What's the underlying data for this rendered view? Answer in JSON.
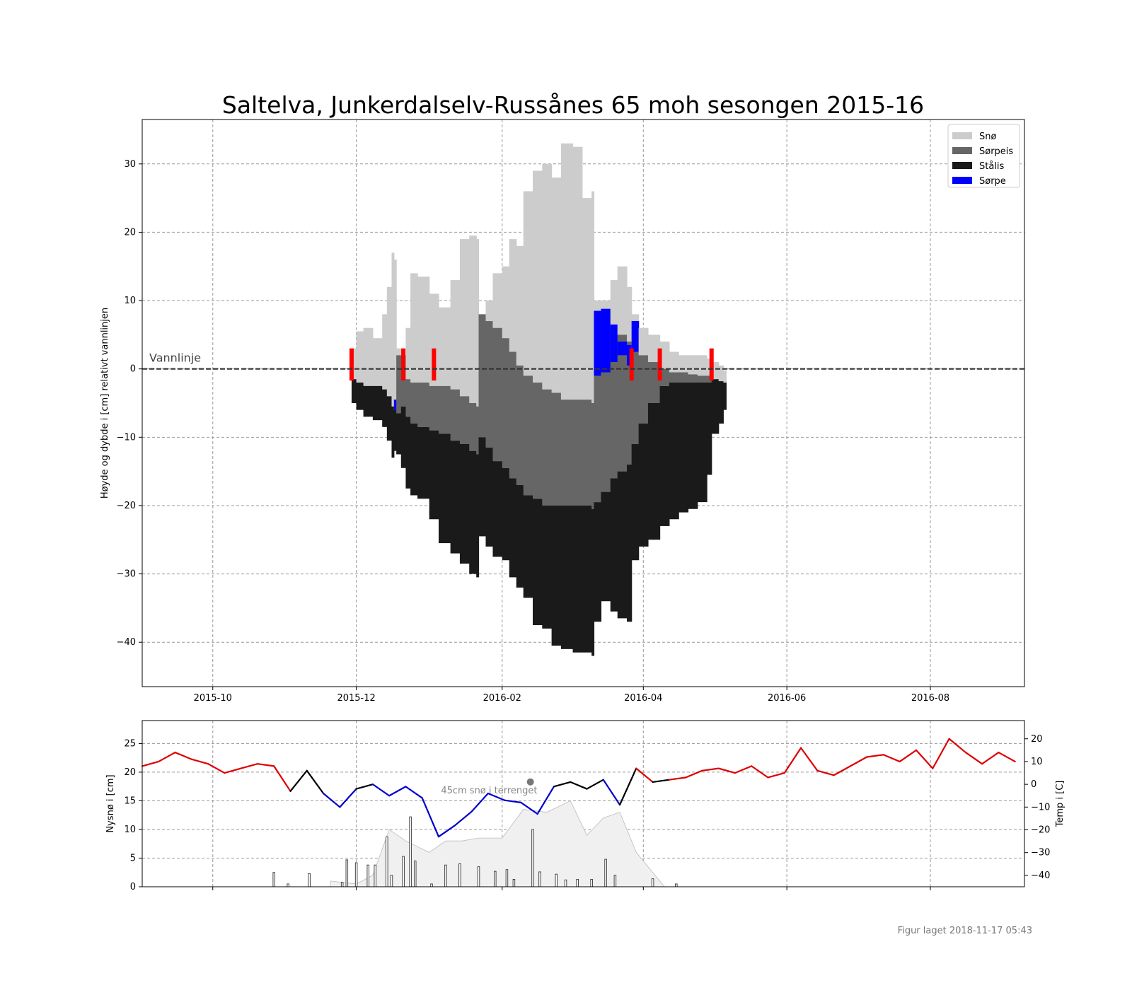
{
  "chart_data": [
    {
      "type": "bar",
      "title": "Saltelva, Junkerdalselv-Russånes 65 moh sesongen 2015-16",
      "ylabel": "Høyde og dybde i [cm] relativt vannlinjen",
      "xlim": [
        "2015-09-01",
        "2016-09-10"
      ],
      "ylim": [
        -46.5,
        36.5
      ],
      "grid": true,
      "x_ticks": [
        "2015-10",
        "2015-12",
        "2016-02",
        "2016-04",
        "2016-06",
        "2016-08"
      ],
      "y_ticks": [
        30,
        20,
        10,
        0,
        -10,
        -20,
        -30,
        -40
      ],
      "legend_position": "top-right",
      "waterline_label": "Vannlinje",
      "waterline_value": 0,
      "series": [
        {
          "name": "Snø",
          "color": "#cccccc"
        },
        {
          "name": "Sørpeis",
          "color": "#666666"
        },
        {
          "name": "Stålis",
          "color": "#1a1a1a"
        },
        {
          "name": "Sørpe",
          "color": "#0000ff"
        }
      ],
      "observation_markers": [
        "2015-11-29",
        "2015-12-21",
        "2016-01-03",
        "2016-03-27",
        "2016-04-08",
        "2016-04-30"
      ],
      "layers": {
        "x": [
          "2015-11-29",
          "2015-12-01",
          "2015-12-04",
          "2015-12-08",
          "2015-12-12",
          "2015-12-14",
          "2015-12-16",
          "2015-12-17",
          "2015-12-18",
          "2015-12-20",
          "2015-12-22",
          "2015-12-24",
          "2015-12-27",
          "2016-01-01",
          "2016-01-05",
          "2016-01-10",
          "2016-01-14",
          "2016-01-18",
          "2016-01-21",
          "2016-01-22",
          "2016-01-25",
          "2016-01-28",
          "2016-02-01",
          "2016-02-04",
          "2016-02-07",
          "2016-02-10",
          "2016-02-14",
          "2016-02-18",
          "2016-02-22",
          "2016-02-26",
          "2016-03-02",
          "2016-03-06",
          "2016-03-10",
          "2016-03-11",
          "2016-03-14",
          "2016-03-18",
          "2016-03-21",
          "2016-03-25",
          "2016-03-27",
          "2016-03-30",
          "2016-04-03",
          "2016-04-08",
          "2016-04-12",
          "2016-04-16",
          "2016-04-20",
          "2016-04-24",
          "2016-04-28",
          "2016-04-30",
          "2016-05-03",
          "2016-05-05"
        ],
        "top": [
          3.0,
          5.5,
          6.0,
          4.5,
          8.0,
          12.0,
          17.0,
          16.0,
          3.0,
          2.0,
          6.0,
          14.0,
          13.5,
          11.0,
          9.0,
          13.0,
          19.0,
          19.5,
          19.0,
          8.0,
          10.0,
          14.0,
          15.0,
          19.0,
          18.0,
          26.0,
          29.0,
          30.0,
          28.0,
          33.0,
          32.5,
          25.0,
          26.0,
          10.0,
          10.0,
          13.0,
          15.0,
          12.0,
          8.0,
          6.0,
          5.0,
          4.0,
          2.5,
          2.0,
          2.0,
          2.0,
          1.5,
          1.0,
          0.5,
          -0.2
        ],
        "snow_base": [
          -1.5,
          -2.0,
          -2.5,
          -2.5,
          -3.0,
          -4.0,
          -5.5,
          -6.0,
          2.0,
          2.0,
          -1.5,
          -2.0,
          -2.0,
          -2.5,
          -2.5,
          -3.0,
          -4.0,
          -5.0,
          -5.5,
          8.0,
          7.0,
          6.0,
          4.5,
          2.5,
          0.5,
          -1.0,
          -2.0,
          -3.0,
          -3.5,
          -4.5,
          -4.5,
          -4.5,
          -5.0,
          8.5,
          8.5,
          6.0,
          5.0,
          4.0,
          3.0,
          2.0,
          1.0,
          0.0,
          -0.5,
          -0.5,
          -0.8,
          -1.0,
          -1.0,
          -1.5,
          -1.8,
          -2.0
        ],
        "slush_ice_bottom": [
          -1.5,
          -2.0,
          -2.5,
          -2.5,
          -3.0,
          -4.0,
          -5.5,
          -6.0,
          -6.5,
          -5.5,
          -7.0,
          -8.0,
          -8.5,
          -9.0,
          -9.5,
          -10.5,
          -11.0,
          -12.0,
          -12.5,
          -10.0,
          -11.5,
          -13.5,
          -14.5,
          -16.0,
          -17.0,
          -18.5,
          -19.0,
          -20.0,
          -20.0,
          -20.0,
          -20.0,
          -20.0,
          -20.5,
          -19.5,
          -18.0,
          -16.0,
          -15.0,
          -14.0,
          -11.0,
          -8.0,
          -5.0,
          -2.5,
          -2.0,
          -2.0,
          -2.0,
          -2.0,
          -2.0,
          -1.5,
          -1.8,
          -2.0
        ],
        "steel_ice_bottom": [
          -5.0,
          -6.0,
          -7.0,
          -7.5,
          -8.5,
          -10.5,
          -13.0,
          -12.0,
          -12.5,
          -14.5,
          -17.5,
          -18.5,
          -19.0,
          -22.0,
          -25.5,
          -27.0,
          -28.5,
          -30.0,
          -30.5,
          -24.5,
          -26.0,
          -27.5,
          -28.0,
          -30.5,
          -32.0,
          -33.5,
          -37.5,
          -38.0,
          -40.5,
          -41.0,
          -41.5,
          -41.5,
          -42.0,
          -37.0,
          -34.0,
          -35.5,
          -36.5,
          -37.0,
          -28.0,
          -26.0,
          -25.0,
          -23.0,
          -22.0,
          -21.0,
          -20.5,
          -19.5,
          -15.5,
          -9.5,
          -8.0,
          -6.0
        ],
        "slurry_top": [
          0,
          0,
          0,
          0,
          0,
          0,
          0,
          -4.5,
          0,
          0,
          0,
          0,
          0,
          0,
          0,
          0,
          0,
          0,
          0,
          0,
          0,
          0,
          0,
          0,
          0,
          0,
          0,
          0,
          0,
          0,
          0,
          0,
          0,
          8.5,
          8.8,
          6.5,
          4.0,
          3.5,
          7.0,
          0,
          0,
          0,
          0,
          0,
          0,
          0,
          0,
          0,
          0,
          0
        ],
        "slurry_bottom": [
          0,
          0,
          0,
          0,
          0,
          0,
          0,
          -6.0,
          0,
          0,
          0,
          0,
          0,
          0,
          0,
          0,
          0,
          0,
          0,
          0,
          0,
          0,
          0,
          0,
          0,
          0,
          0,
          0,
          0,
          0,
          0,
          0,
          0,
          -1.0,
          -0.5,
          1.0,
          2.0,
          0.5,
          2.5,
          0,
          0,
          0,
          0,
          0,
          0,
          0,
          0,
          0,
          0,
          0
        ]
      }
    },
    {
      "type": "line",
      "ylabel": "Nysnø i [cm]",
      "y2label": "Temp i [C]",
      "ylim": [
        0,
        29
      ],
      "y2lim": [
        -45,
        28
      ],
      "y_ticks": [
        0,
        5,
        10,
        15,
        20,
        25
      ],
      "y2_ticks": [
        20,
        10,
        0,
        -10,
        -20,
        -30,
        -40
      ],
      "annotation": "45cm snø i terrenget",
      "annotation_x": "2016-02-13",
      "annotation_value": 45,
      "temperature": {
        "x": [
          "2015-09-01",
          "2015-09-08",
          "2015-09-15",
          "2015-09-22",
          "2015-09-29",
          "2015-10-06",
          "2015-10-13",
          "2015-10-20",
          "2015-10-27",
          "2015-11-03",
          "2015-11-10",
          "2015-11-17",
          "2015-11-24",
          "2015-12-01",
          "2015-12-08",
          "2015-12-15",
          "2015-12-22",
          "2015-12-29",
          "2016-01-05",
          "2016-01-12",
          "2016-01-19",
          "2016-01-26",
          "2016-02-02",
          "2016-02-09",
          "2016-02-16",
          "2016-02-23",
          "2016-03-01",
          "2016-03-08",
          "2016-03-15",
          "2016-03-22",
          "2016-03-29",
          "2016-04-05",
          "2016-04-12",
          "2016-04-19",
          "2016-04-26",
          "2016-05-03",
          "2016-05-10",
          "2016-05-17",
          "2016-05-24",
          "2016-05-31",
          "2016-06-07",
          "2016-06-14",
          "2016-06-21",
          "2016-06-28",
          "2016-07-05",
          "2016-07-12",
          "2016-07-19",
          "2016-07-26",
          "2016-08-02",
          "2016-08-09",
          "2016-08-16",
          "2016-08-23",
          "2016-08-30",
          "2016-09-06"
        ],
        "values": [
          8,
          10,
          14,
          11,
          9,
          5,
          7,
          9,
          8,
          -3,
          6,
          -4,
          -10,
          -2,
          0,
          -5,
          -1,
          -6,
          -23,
          -18,
          -12,
          -4,
          -7,
          -8,
          -13,
          -1,
          1,
          -2,
          2,
          -9,
          7,
          1,
          2,
          3,
          6,
          7,
          5,
          8,
          3,
          5,
          16,
          6,
          4,
          8,
          12,
          13,
          10,
          15,
          7,
          20,
          14,
          9,
          14,
          10
        ]
      },
      "temp_colors": {
        "warm": "#dd0000",
        "near_zero": "#000000",
        "cold": "#0000cc"
      },
      "snow_depth": {
        "x": [
          "2015-11-20",
          "2015-12-01",
          "2015-12-08",
          "2015-12-15",
          "2015-12-22",
          "2016-01-01",
          "2016-01-08",
          "2016-01-15",
          "2016-01-22",
          "2016-02-01",
          "2016-02-10",
          "2016-02-20",
          "2016-03-01",
          "2016-03-08",
          "2016-03-15",
          "2016-03-22",
          "2016-03-29",
          "2016-04-05",
          "2016-04-10"
        ],
        "values": [
          1.0,
          0.5,
          2.0,
          10.0,
          8.0,
          6.0,
          8.0,
          8.0,
          8.5,
          8.5,
          13.5,
          13.0,
          15.0,
          9.0,
          12.0,
          13.0,
          6.0,
          2.5,
          0
        ]
      },
      "new_snow": {
        "x": [
          "2015-10-27",
          "2015-11-02",
          "2015-11-11",
          "2015-11-25",
          "2015-11-27",
          "2015-12-01",
          "2015-12-06",
          "2015-12-09",
          "2015-12-14",
          "2015-12-16",
          "2015-12-21",
          "2015-12-24",
          "2015-12-26",
          "2016-01-02",
          "2016-01-08",
          "2016-01-14",
          "2016-01-22",
          "2016-01-29",
          "2016-02-03",
          "2016-02-06",
          "2016-02-14",
          "2016-02-17",
          "2016-02-24",
          "2016-02-28",
          "2016-03-04",
          "2016-03-10",
          "2016-03-16",
          "2016-03-20",
          "2016-04-05",
          "2016-04-15"
        ],
        "values": [
          2.5,
          0.5,
          2.3,
          0.8,
          4.7,
          4.2,
          3.8,
          3.8,
          8.7,
          2.0,
          5.3,
          12.2,
          4.5,
          0.5,
          3.8,
          4.0,
          3.5,
          2.7,
          3.0,
          1.3,
          10.0,
          2.6,
          2.2,
          1.2,
          1.3,
          1.3,
          4.8,
          2.0,
          1.4,
          0.5
        ]
      }
    }
  ],
  "footer": "Figur laget 2018-11-17 05:43",
  "colors": {
    "snow": "#cccccc",
    "slush_ice": "#666666",
    "steel_ice": "#1a1a1a",
    "slurry": "#0000ff",
    "marker": "#ff0000",
    "snow_depth_fill": "#f0f0f0",
    "new_snow_bar": "#ffffff"
  }
}
